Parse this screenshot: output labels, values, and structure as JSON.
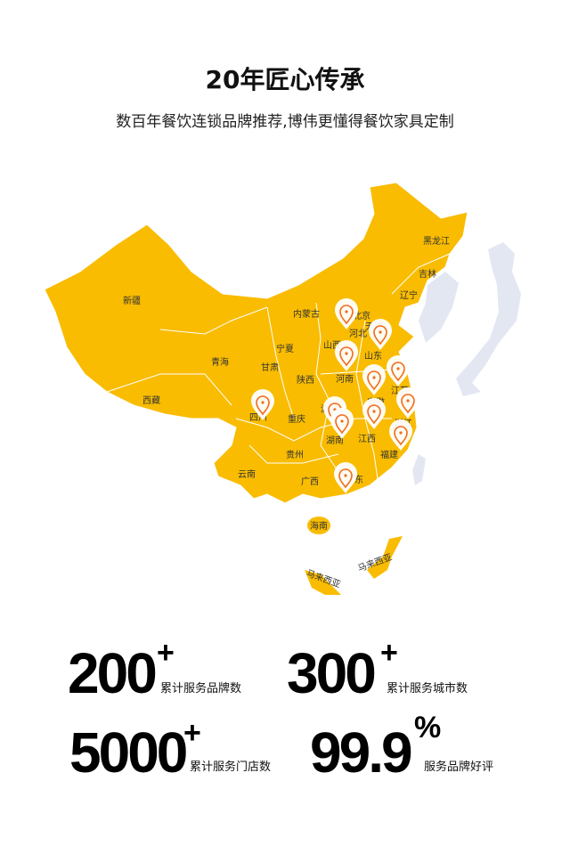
{
  "header": {
    "title": "20年匠心传承",
    "subtitle": "数百年餐饮连锁品牌推荐,博伟更懂得餐饮家具定制"
  },
  "map": {
    "colors": {
      "china": "#F9BC00",
      "border": "#ffffff",
      "neighbors": "#E3E7F2",
      "pin": "#F26B1D"
    },
    "labels": [
      "新疆",
      "西藏",
      "青海",
      "内蒙古",
      "甘肃",
      "宁夏",
      "陕西",
      "山西",
      "北京",
      "天津",
      "河北",
      "山东",
      "河南",
      "四川",
      "重庆",
      "湖北",
      "湖南",
      "安徽",
      "江苏",
      "浙江",
      "江西",
      "福建",
      "贵州",
      "云南",
      "广西",
      "广东",
      "海南",
      "辽宁",
      "吉林",
      "黑龙江",
      "马来西亚",
      "马来西亚"
    ],
    "pin_count": 12
  },
  "stats": [
    {
      "value": "200",
      "suffix": "+",
      "caption": "累计服务品牌数"
    },
    {
      "value": "300",
      "suffix": "+",
      "caption": "累计服务城市数"
    },
    {
      "value": "5000",
      "suffix": "+",
      "caption": "累计服务门店数"
    },
    {
      "value": "99.9",
      "suffix": "%",
      "caption": "服务品牌好评"
    }
  ]
}
